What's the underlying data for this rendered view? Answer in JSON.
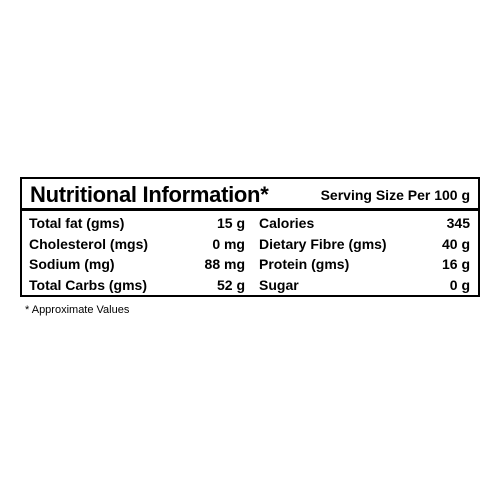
{
  "header": {
    "title": "Nutritional Information*",
    "serving_size": "Serving Size Per 100 g"
  },
  "table": {
    "rows": [
      [
        "Total fat (gms)",
        "15 g",
        "Calories",
        "345"
      ],
      [
        "Cholesterol (mgs)",
        "0 mg",
        "Dietary Fibre (gms)",
        "40 g"
      ],
      [
        "Sodium (mg)",
        "88 mg",
        "Protein (gms)",
        "16 g"
      ],
      [
        "Total Carbs (gms)",
        "52 g",
        "Sugar",
        "0 g"
      ]
    ]
  },
  "footnote": "* Approximate Values"
}
